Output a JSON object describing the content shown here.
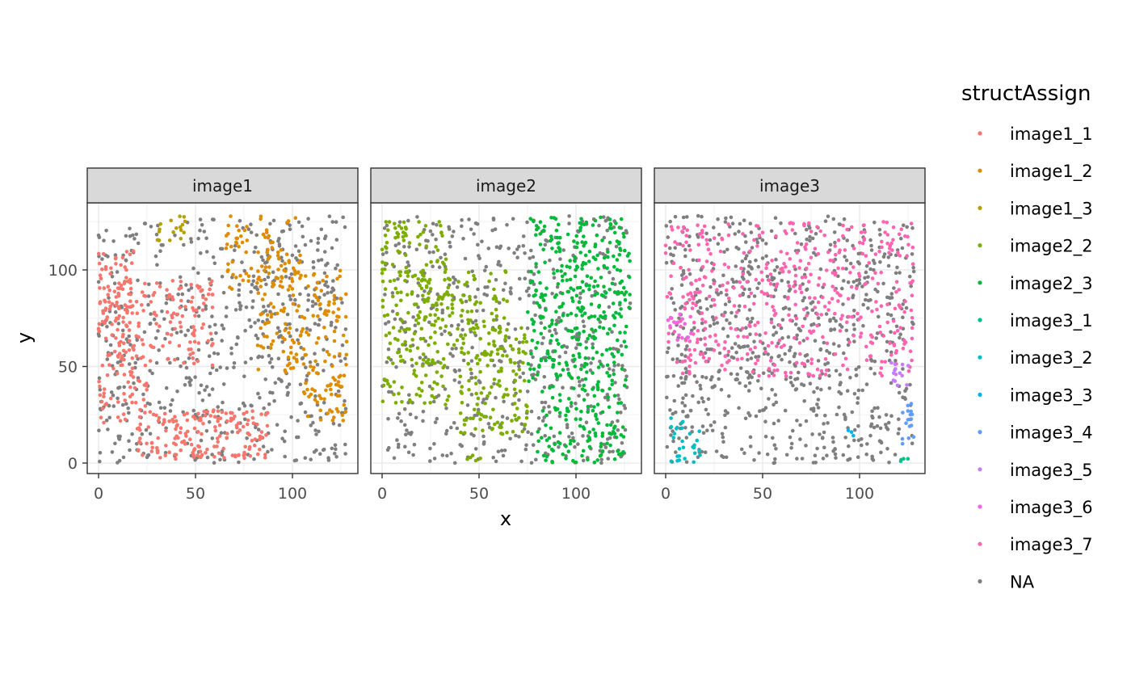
{
  "chart_data": {
    "type": "scatter",
    "facet_by": "sample",
    "facets": [
      "image1",
      "image2",
      "image3"
    ],
    "xlabel": "x",
    "ylabel": "y",
    "xlim": [
      0,
      128
    ],
    "ylim": [
      0,
      128
    ],
    "x_ticks": [
      0,
      50,
      100
    ],
    "y_ticks": [
      0,
      50,
      100
    ],
    "grid": true,
    "legend_position": "right",
    "legend_title": "structAssign",
    "na_color": "#7f7f7f",
    "groups": [
      {
        "name": "image1_1",
        "color": "#F8766D"
      },
      {
        "name": "image1_2",
        "color": "#DE8C00"
      },
      {
        "name": "image1_3",
        "color": "#B79F00"
      },
      {
        "name": "image2_2",
        "color": "#7CAE00"
      },
      {
        "name": "image2_3",
        "color": "#00BA38"
      },
      {
        "name": "image3_1",
        "color": "#00C08B"
      },
      {
        "name": "image3_2",
        "color": "#00BFC4"
      },
      {
        "name": "image3_3",
        "color": "#00B4F0"
      },
      {
        "name": "image3_4",
        "color": "#619CFF"
      },
      {
        "name": "image3_5",
        "color": "#C77CFF"
      },
      {
        "name": "image3_6",
        "color": "#F564E3"
      },
      {
        "name": "image3_7",
        "color": "#FF64B0"
      },
      {
        "name": "NA",
        "color": "#7f7f7f"
      }
    ],
    "regions": [
      {
        "facet": 0,
        "group": "image1_1",
        "x": [
          0,
          18
        ],
        "y": [
          62,
          110
        ],
        "n": 70
      },
      {
        "facet": 0,
        "group": "image1_1",
        "x": [
          0,
          60
        ],
        "y": [
          45,
          95
        ],
        "n": 170
      },
      {
        "facet": 0,
        "group": "image1_1",
        "x": [
          0,
          25
        ],
        "y": [
          20,
          45
        ],
        "n": 40
      },
      {
        "facet": 0,
        "group": "image1_1",
        "x": [
          20,
          88
        ],
        "y": [
          2,
          28
        ],
        "n": 170
      },
      {
        "facet": 0,
        "group": "image1_2",
        "x": [
          65,
          105
        ],
        "y": [
          90,
          128
        ],
        "n": 80
      },
      {
        "facet": 0,
        "group": "image1_2",
        "x": [
          82,
          128
        ],
        "y": [
          45,
          100
        ],
        "n": 150
      },
      {
        "facet": 0,
        "group": "image1_2",
        "x": [
          105,
          128
        ],
        "y": [
          22,
          48
        ],
        "n": 45
      },
      {
        "facet": 0,
        "group": "image1_3",
        "x": [
          30,
          45
        ],
        "y": [
          115,
          128
        ],
        "n": 18
      },
      {
        "facet": 1,
        "group": "image2_2",
        "x": [
          0,
          35
        ],
        "y": [
          30,
          125
        ],
        "n": 210
      },
      {
        "facet": 1,
        "group": "image2_2",
        "x": [
          20,
          65
        ],
        "y": [
          60,
          100
        ],
        "n": 80
      },
      {
        "facet": 1,
        "group": "image2_2",
        "x": [
          40,
          75
        ],
        "y": [
          15,
          70
        ],
        "n": 140
      },
      {
        "facet": 1,
        "group": "image2_2",
        "x": [
          42,
          52
        ],
        "y": [
          0,
          4
        ],
        "n": 5
      },
      {
        "facet": 1,
        "group": "image2_3",
        "x": [
          75,
          128
        ],
        "y": [
          40,
          128
        ],
        "n": 340
      },
      {
        "facet": 1,
        "group": "image2_3",
        "x": [
          80,
          125
        ],
        "y": [
          0,
          40
        ],
        "n": 120
      },
      {
        "facet": 2,
        "group": "image3_7",
        "x": [
          0,
          128
        ],
        "y": [
          45,
          125
        ],
        "n": 460
      },
      {
        "facet": 2,
        "group": "image3_6",
        "x": [
          0,
          15
        ],
        "y": [
          63,
          78
        ],
        "n": 18
      },
      {
        "facet": 2,
        "group": "image3_5",
        "x": [
          115,
          126
        ],
        "y": [
          40,
          52
        ],
        "n": 14
      },
      {
        "facet": 2,
        "group": "image3_4",
        "x": [
          122,
          128
        ],
        "y": [
          8,
          32
        ],
        "n": 16
      },
      {
        "facet": 2,
        "group": "image3_3",
        "x": [
          94,
          97
        ],
        "y": [
          14,
          17
        ],
        "n": 3
      },
      {
        "facet": 2,
        "group": "image3_2",
        "x": [
          2,
          18
        ],
        "y": [
          0,
          24
        ],
        "n": 28
      },
      {
        "facet": 2,
        "group": "image3_1",
        "x": [
          120,
          125
        ],
        "y": [
          0,
          5
        ],
        "n": 4
      }
    ],
    "na_points_per_facet": [
      600,
      560,
      760
    ]
  }
}
